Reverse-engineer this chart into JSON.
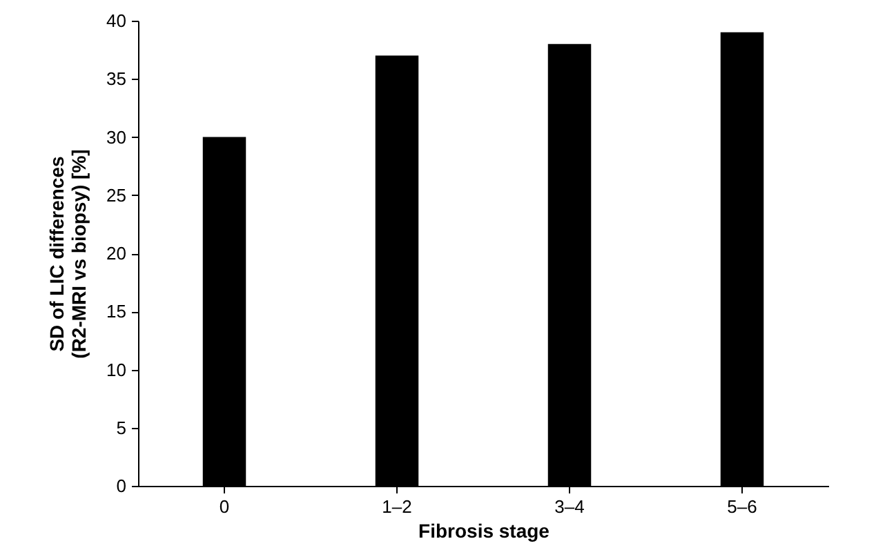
{
  "chart_data": {
    "type": "bar",
    "xlabel": "Fibrosis stage",
    "ylabel": "SD of LIC differences\n(R2-MRI vs biopsy) [%]",
    "categories": [
      "0",
      "1–2",
      "3–4",
      "5–6"
    ],
    "values": [
      30,
      37,
      38,
      39
    ],
    "color": "#000000",
    "ylim": [
      0,
      40
    ],
    "yticks": [
      0,
      5,
      10,
      15,
      20,
      25,
      30,
      35,
      40
    ],
    "grid": false
  }
}
